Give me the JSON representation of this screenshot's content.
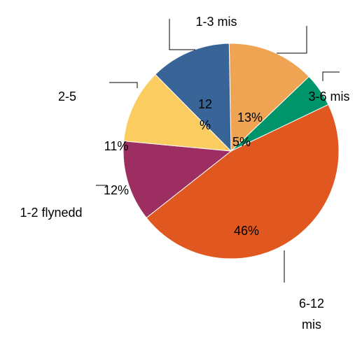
{
  "chart_data": {
    "type": "pie",
    "title": "",
    "start_angle_deg": -91,
    "direction": "clockwise",
    "slices": [
      {
        "label": "1-3 mis",
        "label_lines": [
          "1-3 mis"
        ],
        "value": 13,
        "display": "13%",
        "value_lines": [
          "13%"
        ],
        "color": "#EFA453"
      },
      {
        "label": "3-6 mis",
        "label_lines": [
          "3-6 mis"
        ],
        "value": 5,
        "display": "5%",
        "value_lines": [
          "5%"
        ],
        "color": "#00946B"
      },
      {
        "label": "6-12 mis",
        "label_lines": [
          "6-12",
          "mis"
        ],
        "value": 46,
        "display": "46%",
        "value_lines": [
          "46%"
        ],
        "color": "#E0571F"
      },
      {
        "label": "1-2 flynedd",
        "label_lines": [
          "1-2 flynedd"
        ],
        "value": 12,
        "display": "12%",
        "value_lines": [
          "12%"
        ],
        "color": "#9D2E62"
      },
      {
        "label": "2-5",
        "label_lines": [
          "2-5"
        ],
        "value": 11,
        "display": "11%",
        "value_lines": [
          "11%"
        ],
        "color": "#FBCC60"
      },
      {
        "label": "",
        "label_lines": [],
        "value": 12,
        "display": "12 %",
        "value_lines": [
          "12",
          "%"
        ],
        "color": "#386498"
      }
    ]
  }
}
